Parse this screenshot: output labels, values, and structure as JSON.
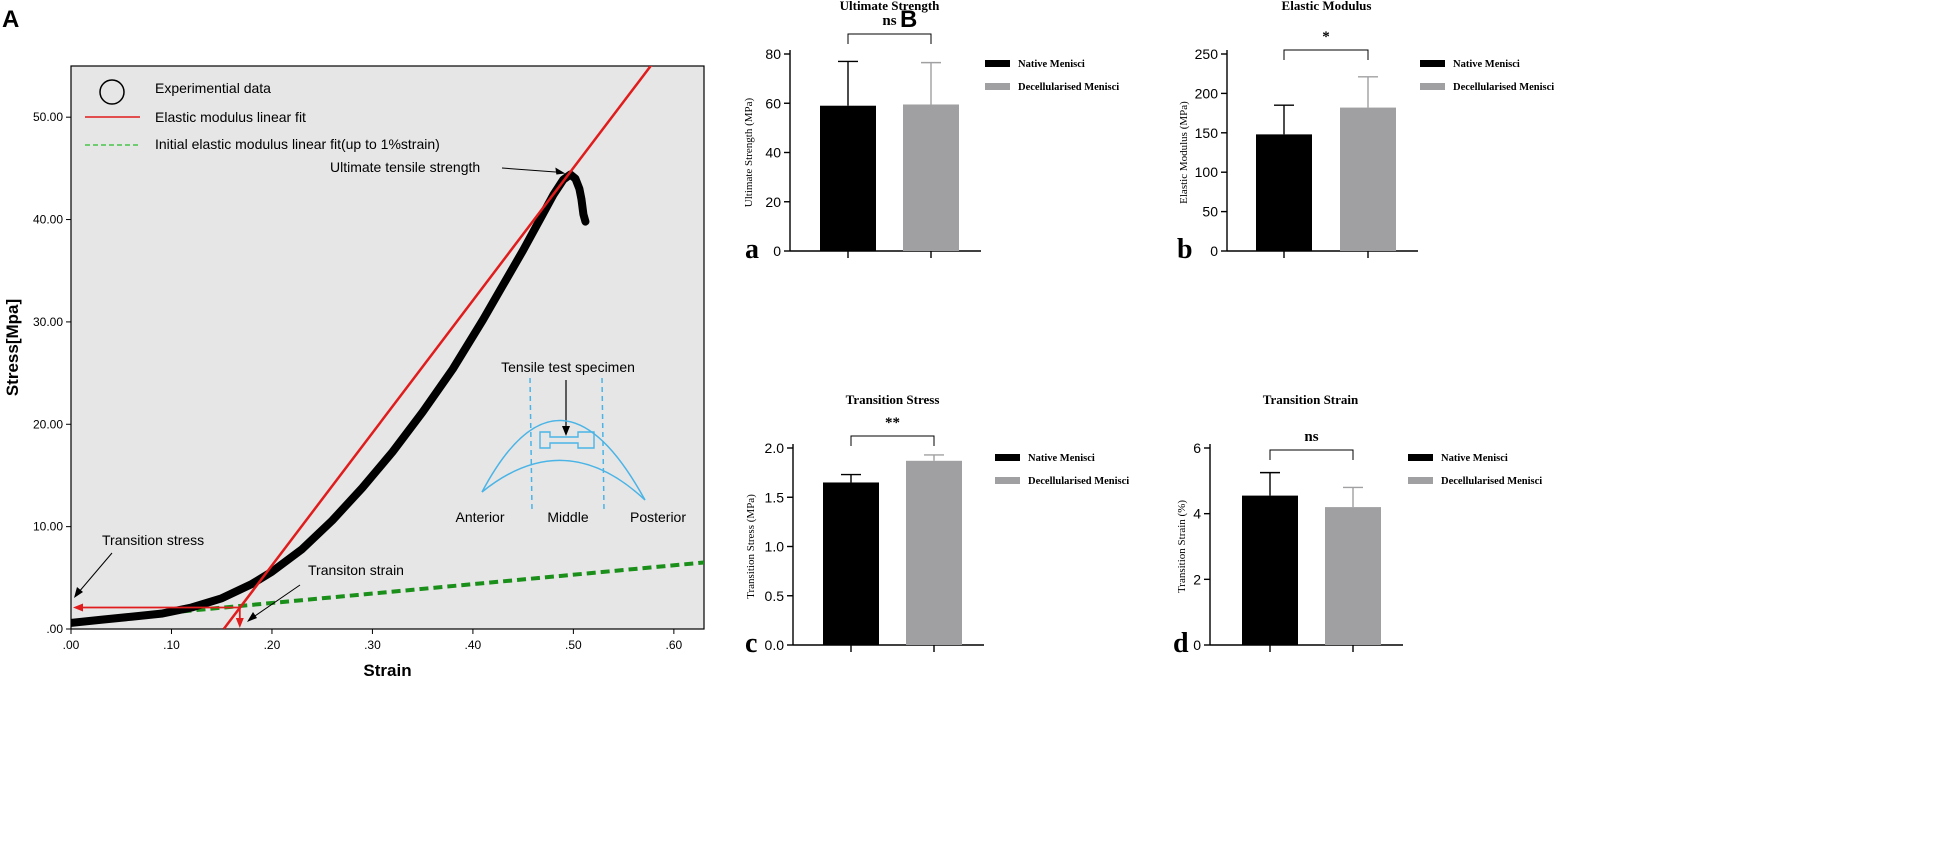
{
  "panel_labels": {
    "A": "A",
    "B": "B"
  },
  "colors": {
    "native": "#000000",
    "decell": "#a0a0a2",
    "fit": "#e01c1c",
    "initial": "#1a8f1a",
    "specimen": "#4ab4e6",
    "plot_bg": "#e6e6e6"
  },
  "chart_data": [
    {
      "id": "stress_strain",
      "type": "line",
      "xlabel": "Strain",
      "ylabel": "Stress[Mpa]",
      "xlim": [
        0,
        0.63
      ],
      "ylim": [
        0,
        55
      ],
      "xticks": [
        0,
        0.1,
        0.2,
        0.3,
        0.4,
        0.5,
        0.6
      ],
      "xtick_labels": [
        ".00",
        ".10",
        ".20",
        ".30",
        ".40",
        ".50",
        ".60"
      ],
      "yticks": [
        0,
        10,
        20,
        30,
        40,
        50
      ],
      "ytick_labels": [
        ".00",
        "10.00",
        "20.00",
        "30.00",
        "40.00",
        "50.00"
      ],
      "legend": {
        "position": "top-left",
        "entries": [
          "Experimential data",
          "Elastic modulus linear fit",
          "Initial elastic modulus linear fit(up to 1%strain)"
        ]
      },
      "experimental_data": [
        [
          0.0,
          0.6
        ],
        [
          0.03,
          0.9
        ],
        [
          0.06,
          1.2
        ],
        [
          0.09,
          1.5
        ],
        [
          0.12,
          2.1
        ],
        [
          0.15,
          3.0
        ],
        [
          0.18,
          4.4
        ],
        [
          0.2,
          5.6
        ],
        [
          0.23,
          7.8
        ],
        [
          0.26,
          10.6
        ],
        [
          0.29,
          13.8
        ],
        [
          0.32,
          17.3
        ],
        [
          0.35,
          21.2
        ],
        [
          0.38,
          25.4
        ],
        [
          0.41,
          30.2
        ],
        [
          0.43,
          33.6
        ],
        [
          0.45,
          37.0
        ],
        [
          0.47,
          40.6
        ],
        [
          0.48,
          42.4
        ],
        [
          0.49,
          43.9
        ],
        [
          0.497,
          44.4
        ],
        [
          0.502,
          44.0
        ],
        [
          0.506,
          43.0
        ],
        [
          0.508,
          42.0
        ],
        [
          0.51,
          40.5
        ],
        [
          0.512,
          39.8
        ]
      ],
      "elastic_fit": {
        "x": [
          0.152,
          0.58
        ],
        "y": [
          0,
          55.4
        ]
      },
      "initial_fit": {
        "x": [
          0,
          0.63
        ],
        "y": [
          0.7,
          6.5
        ]
      },
      "transition_stress_value": 2.1,
      "transition_strain_value": 0.168,
      "uts_point": [
        0.495,
        44.4
      ],
      "annotations": {
        "uts": "Ultimate tensile strength",
        "transition_stress": "Transition stress",
        "transition_strain": "Transiton strain"
      },
      "inset": {
        "title": "Tensile test specimen",
        "regions": [
          "Anterior",
          "Middle",
          "Posterior"
        ]
      }
    },
    {
      "id": "ultimate_strength",
      "type": "bar",
      "sub": "a",
      "title": "Ultimate Strength",
      "significance": "ns",
      "ylabel": "Ultimate Strength (MPa)",
      "ylim": [
        0,
        80
      ],
      "yticks": [
        0,
        20,
        40,
        60,
        80
      ],
      "ytick_labels": [
        "0",
        "20",
        "40",
        "60",
        "80"
      ],
      "series": [
        {
          "name": "Native Menisci",
          "value": 59,
          "error": 18
        },
        {
          "name": "Decellularised Menisci",
          "value": 59.5,
          "error": 17
        }
      ]
    },
    {
      "id": "elastic_modulus",
      "type": "bar",
      "sub": "b",
      "title": "Elastic Modulus",
      "significance": "*",
      "ylabel": "Elastic Modulus (MPa)",
      "ylim": [
        0,
        250
      ],
      "yticks": [
        0,
        50,
        100,
        150,
        200,
        250
      ],
      "ytick_labels": [
        "0",
        "50",
        "100",
        "150",
        "200",
        "250"
      ],
      "series": [
        {
          "name": "Native Menisci",
          "value": 148,
          "error": 37
        },
        {
          "name": "Decellularised Menisci",
          "value": 182,
          "error": 39
        }
      ]
    },
    {
      "id": "transition_stress",
      "type": "bar",
      "sub": "c",
      "title": "Transition Stress",
      "significance": "**",
      "ylabel": "Transition Stress (MPa)",
      "ylim": [
        0,
        2.0
      ],
      "yticks": [
        0,
        0.5,
        1.0,
        1.5,
        2.0
      ],
      "ytick_labels": [
        "0.0",
        "0.5",
        "1.0",
        "1.5",
        "2.0"
      ],
      "series": [
        {
          "name": "Native Menisci",
          "value": 1.65,
          "error": 0.08
        },
        {
          "name": "Decellularised Menisci",
          "value": 1.87,
          "error": 0.06
        }
      ]
    },
    {
      "id": "transition_strain",
      "type": "bar",
      "sub": "d",
      "title": "Transition Strain",
      "significance": "ns",
      "ylabel": "Transition Strain (%)",
      "ylim": [
        0,
        6
      ],
      "yticks": [
        0,
        2,
        4,
        6
      ],
      "ytick_labels": [
        "0",
        "2",
        "4",
        "6"
      ],
      "series": [
        {
          "name": "Native Menisci",
          "value": 4.55,
          "error": 0.7
        },
        {
          "name": "Decellularised Menisci",
          "value": 4.2,
          "error": 0.6
        }
      ]
    }
  ]
}
